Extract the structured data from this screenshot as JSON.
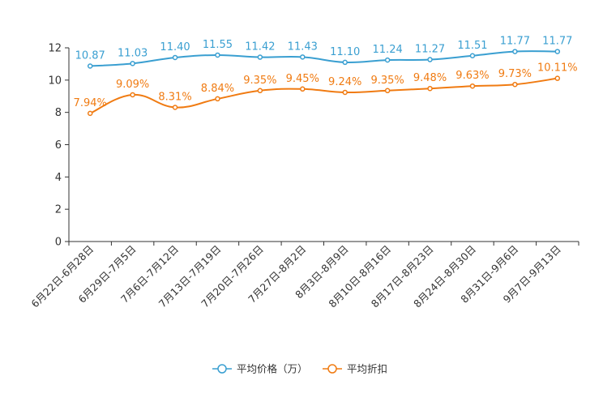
{
  "chart_data": {
    "type": "line",
    "categories": [
      "6月22日-6月28日",
      "6月29日-7月5日",
      "7月6日-7月12日",
      "7月13日-7月19日",
      "7月20日-7月26日",
      "7月27日-8月2日",
      "8月3日-8月9日",
      "8月10日-8月16日",
      "8月17日-8月23日",
      "8月24日-8月30日",
      "8月31日-9月6日",
      "9月7日-9月13日"
    ],
    "series": [
      {
        "name": "平均价格（万）",
        "color": "#3a9fd1",
        "values": [
          10.87,
          11.03,
          11.4,
          11.55,
          11.42,
          11.43,
          11.1,
          11.24,
          11.27,
          11.51,
          11.77,
          11.77
        ],
        "labels": [
          "10.87",
          "11.03",
          "11.40",
          "11.55",
          "11.42",
          "11.43",
          "11.10",
          "11.24",
          "11.27",
          "11.51",
          "11.77",
          "11.77"
        ]
      },
      {
        "name": "平均折扣",
        "color": "#f07b12",
        "values": [
          7.94,
          9.09,
          8.31,
          8.84,
          9.35,
          9.45,
          9.24,
          9.35,
          9.48,
          9.63,
          9.73,
          10.11
        ],
        "labels": [
          "7.94%",
          "9.09%",
          "8.31%",
          "8.84%",
          "9.35%",
          "9.45%",
          "9.24%",
          "9.35%",
          "9.48%",
          "9.63%",
          "9.73%",
          "10.11%"
        ]
      }
    ],
    "ylim": [
      0,
      12
    ],
    "yticks": [
      0,
      2,
      4,
      6,
      8,
      10,
      12
    ],
    "legend": "bottom-center",
    "grid": false
  }
}
